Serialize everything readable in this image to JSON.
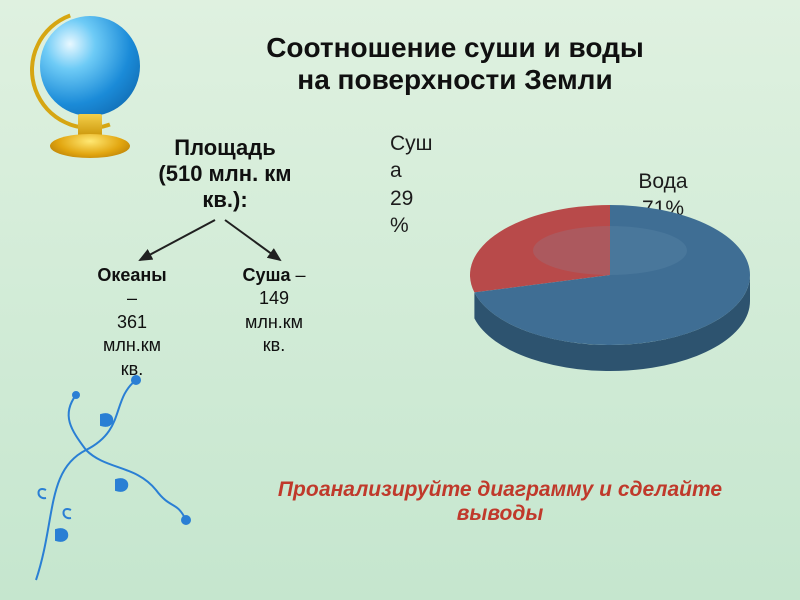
{
  "title": {
    "line1": "Соотношение суши и воды",
    "line2": "на поверхности Земли",
    "fontsize": 28,
    "color": "#101010"
  },
  "subtitle": {
    "line1": "Площадь",
    "line2": "(510 млн. км",
    "line3": "кв.):",
    "fontsize": 22
  },
  "tree": {
    "leaf1": {
      "label": "Океаны",
      "dash": "–",
      "value1": "361",
      "value2": "млн.км",
      "value3": "кв."
    },
    "leaf2": {
      "label": "Суша",
      "dash": " –",
      "value1": "149",
      "value2": "млн.км",
      "value3": "кв."
    },
    "fontsize": 18,
    "arrow_color": "#202020"
  },
  "pie": {
    "type": "pie-3d",
    "slices": [
      {
        "name": "Суша",
        "percent": 29,
        "label_line1": "Суш",
        "label_line2": "а",
        "label_line3": "29",
        "label_line4": "%",
        "color": "#b84a4a",
        "side_color": "#8e3636"
      },
      {
        "name": "Вода",
        "percent": 71,
        "label_line1": "Вода",
        "label_line2": "71%",
        "color": "#3f6e94",
        "side_color": "#2d536f"
      }
    ],
    "label_fontsize": 21,
    "label_color": "#1c1c1c",
    "ellipse_rx": 140,
    "ellipse_ry": 70,
    "depth": 26,
    "tilt_highlight": "#7aa0bc"
  },
  "instruction": {
    "text": "Проанализируйте диаграмму и сделайте выводы",
    "color": "#c0392b",
    "fontsize": 21
  },
  "floral_color": "#2a7fd4",
  "background_gradient": [
    "#dff1e0",
    "#c5e6ce"
  ]
}
